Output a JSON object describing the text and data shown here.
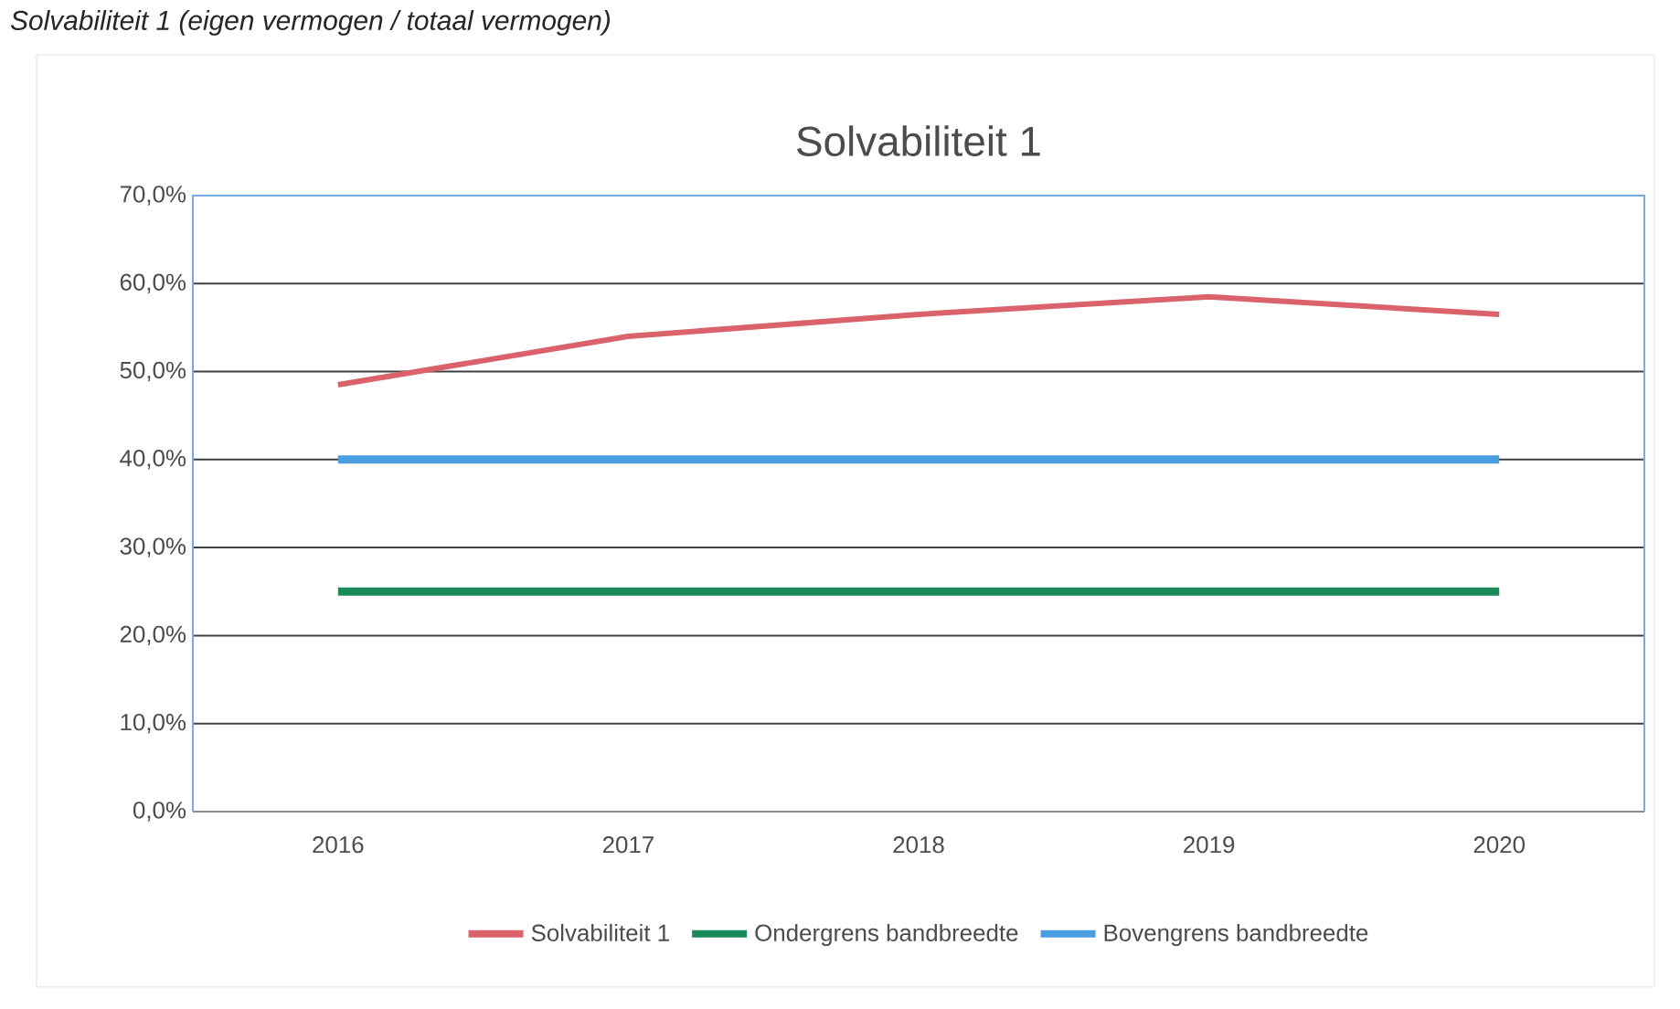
{
  "chart_data": {
    "type": "line",
    "title": "Solvabiliteit 1",
    "annotations": [
      "Solvabiliteit 1 (eigen vermogen / totaal vermogen)"
    ],
    "categories": [
      "2016",
      "2017",
      "2018",
      "2019",
      "2020"
    ],
    "series": [
      {
        "name": "Solvabiliteit 1",
        "color": "#d9626b",
        "values": [
          48.5,
          54,
          56.5,
          58.5,
          56.5
        ]
      },
      {
        "name": "Ondergrens bandbreedte",
        "color": "#1a8a5a",
        "values": [
          25,
          25,
          25,
          25,
          25
        ]
      },
      {
        "name": "Bovengrens bandbreedte",
        "color": "#4a9ee0",
        "values": [
          40,
          40,
          40,
          40,
          40
        ]
      }
    ],
    "ylim": [
      0,
      70
    ],
    "yticks": [
      {
        "value": 0,
        "label": "0,0%"
      },
      {
        "value": 10,
        "label": "10,0%"
      },
      {
        "value": 20,
        "label": "20,0%"
      },
      {
        "value": 30,
        "label": "30,0%"
      },
      {
        "value": 40,
        "label": "40,0%"
      },
      {
        "value": 50,
        "label": "50,0%"
      },
      {
        "value": 60,
        "label": "60,0%"
      },
      {
        "value": 70,
        "label": "70,0%"
      }
    ],
    "grid": "y",
    "legend": "bottom",
    "marker": "none",
    "line_style": "solid"
  }
}
